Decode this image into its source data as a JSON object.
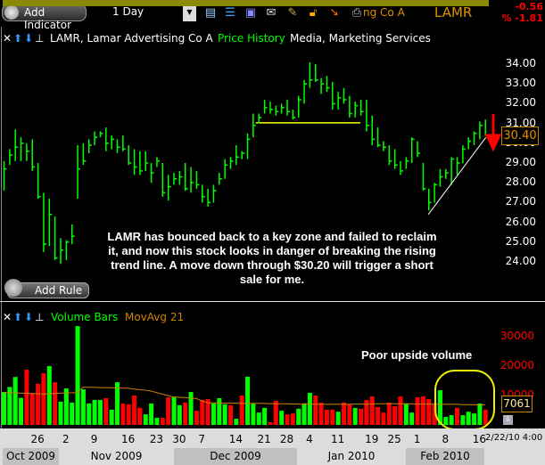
{
  "toolbar": {
    "add_indicator_label": "Add Indicator",
    "period_value": "1 Day",
    "icons": [
      "layout-icon",
      "list-icon",
      "save-icon",
      "mail-icon",
      "pencil-icon",
      "lock-icon",
      "flame-arrow-icon",
      "print-icon"
    ],
    "company_partial": "ng Co A",
    "symbol": "LAMR",
    "change": "-0.56",
    "change_pct": "% -1.81"
  },
  "price_panel": {
    "title": "LAMR, Lamar Advertising Co A",
    "study": "Price History",
    "industry": "Media, Marketing Services",
    "add_rule_label": "Add Rule",
    "annotation": "LAMR has bounced back to a key zone and failed to reclaim it, and now this stock looks in danger of breaking the rising trend line.  A move down through $30.20 will trigger a short sale for me.",
    "last_price": "30.40",
    "resistance_level": 31.0,
    "y_ticks": [
      "34.00",
      "33.00",
      "32.00",
      "31.00",
      "30.00",
      "29.00",
      "28.00",
      "27.00",
      "26.00",
      "25.00",
      "24.00"
    ]
  },
  "volume_panel": {
    "title": "Volume Bars",
    "study": "MovAvg 21",
    "annotation": "Poor upside volume",
    "last_value": "7061",
    "y_ticks": [
      "30000",
      "20000",
      "10000"
    ]
  },
  "date_axis": {
    "day_labels": [
      {
        "label": "26",
        "bar": 6
      },
      {
        "label": "2",
        "bar": 11
      },
      {
        "label": "9",
        "bar": 16
      },
      {
        "label": "16",
        "bar": 22
      },
      {
        "label": "23",
        "bar": 27
      },
      {
        "label": "30",
        "bar": 31
      },
      {
        "label": "7",
        "bar": 35
      },
      {
        "label": "14",
        "bar": 41
      },
      {
        "label": "21",
        "bar": 46
      },
      {
        "label": "28",
        "bar": 50
      },
      {
        "label": "4",
        "bar": 54
      },
      {
        "label": "11",
        "bar": 59
      },
      {
        "label": "19",
        "bar": 65
      },
      {
        "label": "25",
        "bar": 69
      },
      {
        "label": "1",
        "bar": 73
      },
      {
        "label": "8",
        "bar": 78
      },
      {
        "label": "16",
        "bar": 84
      }
    ],
    "months": [
      "Oct 2009",
      "Nov 2009",
      "Dec 2009",
      "Jan 2010",
      "Feb 2010"
    ],
    "timestamp": "2/22/10 4:00"
  },
  "colors": {
    "up": "#00ff00",
    "down": "#ff0000",
    "resistance": "#8a8a00",
    "ma": "#d08000",
    "accent": "#e09000"
  },
  "chart_data": [
    {
      "type": "ohlc",
      "ylim": [
        24,
        34
      ],
      "fields": [
        "high",
        "low",
        "close"
      ],
      "bars": [
        [
          29.1,
          27.6,
          28.7
        ],
        [
          29.7,
          28.9,
          29.4
        ],
        [
          30.7,
          29.1,
          29.8
        ],
        [
          30.3,
          29.1,
          30.0
        ],
        [
          30.0,
          29.1,
          29.6
        ],
        [
          30.2,
          28.6,
          28.8
        ],
        [
          29.0,
          27.2,
          27.3
        ],
        [
          27.5,
          24.5,
          24.9
        ],
        [
          27.2,
          24.8,
          26.4
        ],
        [
          26.3,
          24.1,
          24.2
        ],
        [
          25.2,
          23.9,
          24.6
        ],
        [
          25.1,
          24.1,
          25.0
        ],
        [
          25.9,
          24.9,
          25.3
        ],
        [
          29.9,
          27.2,
          28.7
        ],
        [
          30.0,
          28.9,
          29.1
        ],
        [
          30.2,
          29.5,
          29.9
        ],
        [
          30.6,
          29.9,
          30.3
        ],
        [
          30.6,
          30.3,
          30.5
        ],
        [
          30.8,
          29.6,
          30.0
        ],
        [
          30.4,
          29.7,
          30.2
        ],
        [
          30.2,
          29.5,
          29.8
        ],
        [
          30.4,
          29.6,
          29.7
        ],
        [
          29.9,
          28.9,
          29.0
        ],
        [
          29.7,
          28.4,
          28.8
        ],
        [
          29.6,
          28.4,
          28.6
        ],
        [
          29.6,
          28.6,
          29.0
        ],
        [
          29.0,
          28.0,
          28.5
        ],
        [
          29.3,
          28.8,
          29.1
        ],
        [
          29.0,
          27.3,
          27.5
        ],
        [
          28.4,
          27.1,
          27.8
        ],
        [
          28.5,
          27.9,
          28.2
        ],
        [
          28.6,
          27.9,
          28.3
        ],
        [
          29.0,
          27.6,
          27.7
        ],
        [
          28.8,
          27.5,
          28.0
        ],
        [
          28.6,
          27.7,
          27.9
        ],
        [
          27.9,
          27.0,
          27.3
        ],
        [
          27.7,
          26.8,
          27.0
        ],
        [
          27.9,
          27.0,
          27.6
        ],
        [
          28.5,
          27.9,
          28.2
        ],
        [
          29.2,
          28.2,
          28.9
        ],
        [
          29.3,
          28.7,
          29.1
        ],
        [
          29.9,
          28.9,
          29.3
        ],
        [
          29.6,
          29.2,
          29.5
        ],
        [
          30.5,
          29.2,
          30.2
        ],
        [
          31.5,
          30.3,
          30.9
        ],
        [
          31.5,
          31.0,
          31.3
        ],
        [
          32.2,
          31.5,
          31.8
        ],
        [
          32.1,
          31.5,
          31.7
        ],
        [
          31.9,
          31.4,
          31.6
        ],
        [
          32.0,
          31.5,
          31.8
        ],
        [
          32.2,
          31.4,
          31.6
        ],
        [
          31.7,
          31.2,
          31.3
        ],
        [
          32.4,
          31.3,
          32.2
        ],
        [
          33.2,
          32.0,
          33.0
        ],
        [
          34.1,
          32.8,
          33.2
        ],
        [
          34.0,
          33.1,
          33.2
        ],
        [
          33.3,
          32.5,
          33.0
        ],
        [
          33.4,
          32.6,
          32.8
        ],
        [
          33.1,
          31.7,
          32.0
        ],
        [
          32.6,
          31.7,
          32.3
        ],
        [
          32.8,
          32.0,
          32.2
        ],
        [
          32.4,
          31.3,
          31.5
        ],
        [
          32.1,
          31.3,
          31.9
        ],
        [
          32.2,
          31.4,
          31.6
        ],
        [
          32.2,
          30.6,
          30.9
        ],
        [
          31.4,
          29.9,
          30.2
        ],
        [
          30.8,
          29.8,
          29.9
        ],
        [
          30.1,
          29.6,
          29.8
        ],
        [
          29.9,
          28.9,
          29.1
        ],
        [
          29.7,
          28.7,
          28.9
        ],
        [
          29.1,
          28.4,
          28.6
        ],
        [
          29.3,
          28.7,
          29.1
        ],
        [
          30.3,
          29.0,
          30.2
        ],
        [
          30.1,
          29.3,
          29.5
        ],
        [
          29.0,
          27.6,
          27.7
        ],
        [
          27.7,
          26.6,
          27.0
        ],
        [
          28.0,
          27.0,
          27.9
        ],
        [
          28.7,
          27.8,
          28.3
        ],
        [
          28.7,
          28.2,
          28.5
        ],
        [
          29.3,
          27.9,
          29.2
        ],
        [
          29.3,
          28.4,
          29.0
        ],
        [
          29.9,
          29.0,
          29.7
        ],
        [
          30.3,
          29.7,
          30.1
        ],
        [
          30.6,
          29.9,
          30.5
        ],
        [
          31.1,
          30.2,
          30.9
        ],
        [
          31.2,
          30.4,
          30.4
        ]
      ],
      "trendline": [
        [
          75,
          26.4
        ],
        [
          85,
          30.3
        ]
      ]
    },
    {
      "type": "bar",
      "ylim": [
        0,
        33000
      ],
      "values": [
        11200,
        12900,
        16300,
        9200,
        18800,
        10700,
        14000,
        17600,
        20000,
        14500,
        7900,
        12400,
        7600,
        33600,
        12100,
        7300,
        8500,
        8500,
        9100,
        5200,
        14500,
        7300,
        7000,
        10000,
        5800,
        3600,
        7300,
        2400,
        2400,
        9400,
        9400,
        6700,
        7600,
        11200,
        4800,
        8500,
        8800,
        7300,
        9100,
        7000,
        6700,
        2100,
        10000,
        16400,
        7200,
        4200,
        5800,
        900,
        8200,
        4800,
        3600,
        3900,
        5500,
        7300,
        10900,
        10000,
        7600,
        5200,
        5200,
        4500,
        7600,
        7000,
        5800,
        5500,
        8500,
        9700,
        6100,
        4200,
        7600,
        6400,
        9700,
        7300,
        4200,
        9400,
        9700,
        8800,
        7000,
        11800,
        2700,
        3300,
        5800,
        3300,
        4500,
        3900,
        7300,
        5200
      ],
      "up": [
        1,
        1,
        1,
        1,
        0,
        0,
        0,
        0,
        1,
        0,
        1,
        1,
        1,
        1,
        1,
        1,
        1,
        1,
        0,
        1,
        1,
        0,
        0,
        0,
        0,
        1,
        1,
        1,
        0,
        0,
        1,
        1,
        0,
        1,
        0,
        0,
        0,
        1,
        1,
        1,
        0,
        1,
        0,
        1,
        1,
        1,
        1,
        0,
        0,
        1,
        0,
        0,
        1,
        1,
        1,
        0,
        0,
        0,
        0,
        1,
        0,
        0,
        1,
        0,
        0,
        0,
        0,
        0,
        0,
        0,
        0,
        1,
        1,
        0,
        0,
        0,
        0,
        1,
        1,
        1,
        0,
        1,
        1,
        1,
        1,
        0
      ],
      "moving_average": [
        11000,
        10900,
        10900,
        10800,
        10800,
        10700,
        10600,
        10500,
        10600,
        10700,
        10800,
        10900,
        10900,
        11000,
        12800,
        12800,
        12800,
        12700,
        12700,
        12600,
        12600,
        12500,
        12500,
        12200,
        12000,
        11800,
        11500,
        11000,
        10500,
        10000,
        9500,
        9400,
        9300,
        9100,
        9000,
        8200,
        7500,
        7500,
        7500,
        7400,
        7400,
        7400,
        7300,
        7300,
        7300,
        7300,
        7300,
        7200,
        7200,
        7200,
        7200,
        7100,
        7100,
        7100,
        7100,
        7000,
        7000,
        7000,
        7000,
        7000,
        7000,
        7000,
        7100,
        7100,
        7100,
        7100,
        7200,
        7200,
        7200,
        7200,
        7200,
        7200,
        7200,
        7100,
        7100,
        7100,
        7100,
        7000,
        7000,
        7000,
        7000,
        6900,
        6900,
        6800,
        6800,
        6800
      ]
    }
  ]
}
